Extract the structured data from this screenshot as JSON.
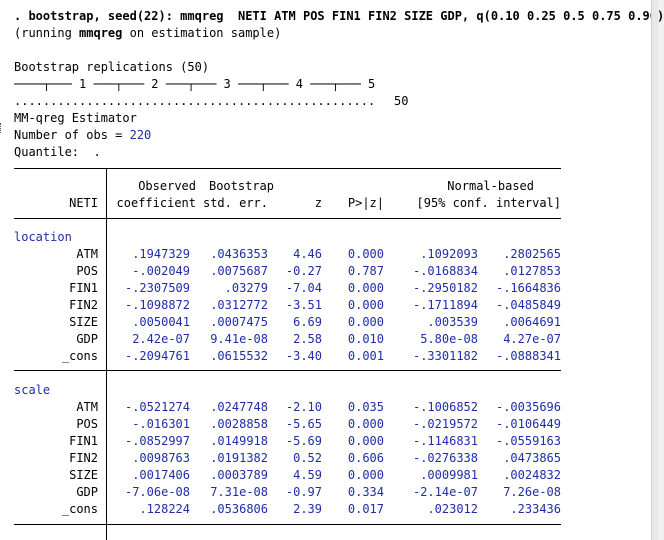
{
  "command": ". bootstrap, seed(22): mmqreg  NETI ATM POS FIN1 FIN2 SIZE GDP, q(0.10 0.25 0.5 0.75 0.90)",
  "running_note": {
    "prefix": "(running ",
    "cmd": "mmqreg",
    "suffix": " on estimation sample)"
  },
  "bootstrap": {
    "title": "Bootstrap replications (50)",
    "ruler": "────┬─── 1 ───┬─── 2 ───┬─── 3 ───┬─── 4 ───┬─── 5",
    "dots": "..................................................",
    "count": "50"
  },
  "estimator": "MM-qreg Estimator",
  "obs_label": "Number of obs = ",
  "obs_value": "220",
  "quantile_label": "Quantile:  .",
  "table": {
    "headers": {
      "depvar": "NETI",
      "coef1": "Observed",
      "coef2": "coefficient",
      "se1": "Bootstrap",
      "se2": "std. err.",
      "z": "z",
      "p": "P>|z|",
      "ci1": "Normal-based",
      "ci2": "[95% conf. interval]"
    },
    "groups": [
      {
        "name": "location",
        "rows": [
          {
            "var": "ATM",
            "coef": ".1947329",
            "se": ".0436353",
            "z": "4.46",
            "p": "0.000",
            "lo": ".1092093",
            "hi": ".2802565"
          },
          {
            "var": "POS",
            "coef": "-.002049",
            "se": ".0075687",
            "z": "-0.27",
            "p": "0.787",
            "lo": "-.0168834",
            "hi": ".0127853"
          },
          {
            "var": "FIN1",
            "coef": "-.2307509",
            "se": ".03279",
            "z": "-7.04",
            "p": "0.000",
            "lo": "-.2950182",
            "hi": "-.1664836"
          },
          {
            "var": "FIN2",
            "coef": "-.1098872",
            "se": ".0312772",
            "z": "-3.51",
            "p": "0.000",
            "lo": "-.1711894",
            "hi": "-.0485849"
          },
          {
            "var": "SIZE",
            "coef": ".0050041",
            "se": ".0007475",
            "z": "6.69",
            "p": "0.000",
            "lo": ".003539",
            "hi": ".0064691"
          },
          {
            "var": "GDP",
            "coef": "2.42e-07",
            "se": "9.41e-08",
            "z": "2.58",
            "p": "0.010",
            "lo": "5.80e-08",
            "hi": "4.27e-07"
          },
          {
            "var": "_cons",
            "coef": "-.2094761",
            "se": ".0615532",
            "z": "-3.40",
            "p": "0.001",
            "lo": "-.3301182",
            "hi": "-.0888341"
          }
        ]
      },
      {
        "name": "scale",
        "rows": [
          {
            "var": "ATM",
            "coef": "-.0521274",
            "se": ".0247748",
            "z": "-2.10",
            "p": "0.035",
            "lo": "-.1006852",
            "hi": "-.0035696"
          },
          {
            "var": "POS",
            "coef": "-.016301",
            "se": ".0028858",
            "z": "-5.65",
            "p": "0.000",
            "lo": "-.0219572",
            "hi": "-.0106449"
          },
          {
            "var": "FIN1",
            "coef": "-.0852997",
            "se": ".0149918",
            "z": "-5.69",
            "p": "0.000",
            "lo": "-.1146831",
            "hi": "-.0559163"
          },
          {
            "var": "FIN2",
            "coef": ".0098763",
            "se": ".0191382",
            "z": "0.52",
            "p": "0.606",
            "lo": "-.0276338",
            "hi": ".0473865"
          },
          {
            "var": "SIZE",
            "coef": ".0017406",
            "se": ".0003789",
            "z": "4.59",
            "p": "0.000",
            "lo": ".0009981",
            "hi": ".0024832"
          },
          {
            "var": "GDP",
            "coef": "-7.06e-08",
            "se": "7.31e-08",
            "z": "-0.97",
            "p": "0.334",
            "lo": "-2.14e-07",
            "hi": "7.26e-08"
          },
          {
            "var": "_cons",
            "coef": ".128224",
            "se": ".0536806",
            "z": "2.39",
            "p": "0.017",
            "lo": ".023012",
            "hi": ".233436"
          }
        ]
      }
    ]
  }
}
